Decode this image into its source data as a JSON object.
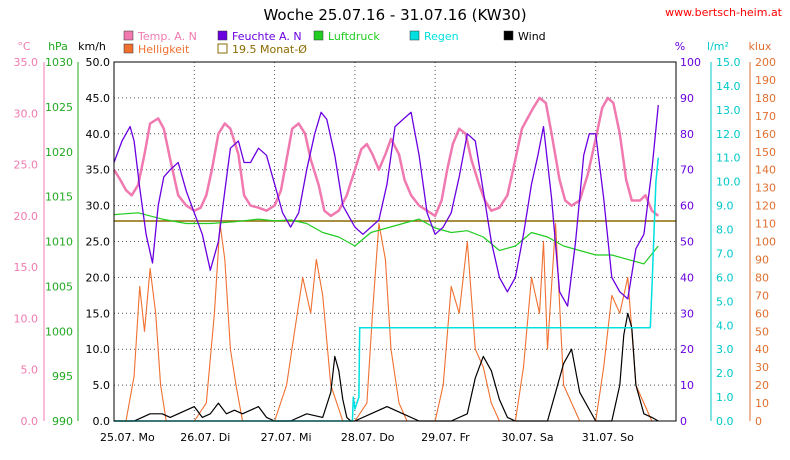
{
  "chart_data": {
    "type": "line",
    "title": "Woche 25.07.16 - 31.07.16 (KW30)",
    "source": "www.bertsch-heim.at",
    "legend": [
      {
        "label": "Temp. A. N",
        "color": "#f07ab0",
        "marker": "filled"
      },
      {
        "label": "Feuchte A. N",
        "color": "#6a00e0",
        "marker": "filled"
      },
      {
        "label": "Luftdruck",
        "color": "#22cc22",
        "marker": "filled"
      },
      {
        "label": "Regen",
        "color": "#00e0e0",
        "marker": "filled"
      },
      {
        "label": "Wind",
        "color": "#000000",
        "marker": "filled"
      },
      {
        "label": "Helligkeit",
        "color": "#f07030",
        "marker": "filled"
      },
      {
        "label": "19.5 Monat-Ø",
        "color": "#8b6b00",
        "marker": "hollow"
      }
    ],
    "x_ticks": [
      "25.07. Mo",
      "26.07. Di",
      "27.07. Mi",
      "28.07. Do",
      "29.07. Fr",
      "30.07. Sa",
      "31.07. So"
    ],
    "axes": {
      "temp": {
        "unit": "°C",
        "color": "#f07ab0",
        "ticks": [
          "0.0",
          "5.0",
          "10.0",
          "15.0",
          "20.0",
          "25.0",
          "30.0",
          "35.0"
        ],
        "range": [
          0,
          35
        ]
      },
      "pressure": {
        "unit": "hPa",
        "color": "#22aa22",
        "ticks": [
          "990",
          "995",
          "1000",
          "1005",
          "1010",
          "1015",
          "1020",
          "1025",
          "1030"
        ],
        "range": [
          990,
          1030
        ]
      },
      "wind": {
        "unit": "km/h",
        "color": "#000000",
        "ticks": [
          "0.0",
          "5.0",
          "10.0",
          "15.0",
          "20.0",
          "25.0",
          "30.0",
          "35.0",
          "40.0",
          "45.0",
          "50.0"
        ],
        "range": [
          0,
          50
        ]
      },
      "humidity": {
        "unit": "%",
        "color": "#6a00e0",
        "ticks": [
          "0",
          "10",
          "20",
          "30",
          "40",
          "50",
          "60",
          "70",
          "80",
          "90",
          "100"
        ],
        "range": [
          0,
          100
        ]
      },
      "rain": {
        "unit": "l/m²",
        "color": "#00c8c8",
        "ticks": [
          "0.0",
          "1.0",
          "2.0",
          "3.0",
          "4.0",
          "5.0",
          "6.0",
          "7.0",
          "8.0",
          "9.0",
          "10.0",
          "11.0",
          "12.0",
          "13.0",
          "14.0",
          "15.0"
        ],
        "range": [
          0,
          15
        ]
      },
      "lux": {
        "unit": "klux",
        "color": "#e07030",
        "ticks": [
          "0",
          "10",
          "20",
          "30",
          "40",
          "50",
          "60",
          "70",
          "80",
          "90",
          "100",
          "110",
          "120",
          "130",
          "140",
          "150",
          "160",
          "170",
          "180",
          "190",
          "200"
        ],
        "range": [
          0,
          200
        ]
      }
    },
    "monthly_avg_temp": 19.5,
    "grid": "dotted",
    "series": [
      {
        "name": "Temp. A. N",
        "axis": "temp",
        "color": "#f07ab0",
        "x": [
          0,
          0.08,
          0.15,
          0.22,
          0.3,
          0.38,
          0.45,
          0.55,
          0.62,
          0.7,
          0.8,
          0.9,
          1.0,
          1.08,
          1.15,
          1.22,
          1.3,
          1.38,
          1.45,
          1.55,
          1.62,
          1.7,
          1.8,
          1.9,
          2.0,
          2.08,
          2.15,
          2.22,
          2.3,
          2.38,
          2.45,
          2.55,
          2.62,
          2.7,
          2.8,
          2.9,
          3.0,
          3.08,
          3.15,
          3.22,
          3.3,
          3.38,
          3.45,
          3.55,
          3.62,
          3.7,
          3.8,
          3.9,
          4.0,
          4.08,
          4.15,
          4.22,
          4.3,
          4.38,
          4.45,
          4.55,
          4.62,
          4.7,
          4.8,
          4.9,
          5.0,
          5.08,
          5.15,
          5.22,
          5.3,
          5.38,
          5.45,
          5.55,
          5.62,
          5.7,
          5.8,
          5.9,
          6.0,
          6.08,
          6.15,
          6.22,
          6.3,
          6.38,
          6.45,
          6.55,
          6.62,
          6.7,
          6.78
        ],
        "y": [
          24.5,
          23.5,
          22.5,
          22,
          23,
          26,
          29,
          29.5,
          28.5,
          25.5,
          22,
          21,
          20.5,
          20.8,
          22,
          24.5,
          28,
          29,
          28.5,
          26,
          22,
          21,
          20.8,
          20.5,
          21,
          22.5,
          25.5,
          28.5,
          29,
          28,
          25.5,
          23,
          20.5,
          20,
          20.5,
          22,
          24.5,
          26.5,
          27,
          26,
          24.5,
          26,
          27.5,
          26,
          23.5,
          22,
          21,
          20.5,
          20,
          21.5,
          24.5,
          27,
          28.5,
          28,
          25.5,
          23,
          21.5,
          20.5,
          20.8,
          22,
          25.5,
          28.5,
          29.5,
          30.5,
          31.5,
          31,
          28,
          23.5,
          21.5,
          21,
          21.5,
          24,
          27.5,
          30.5,
          31.5,
          31,
          28,
          23.5,
          21.5,
          21.5,
          22,
          20.5,
          20
        ]
      },
      {
        "name": "Feuchte A. N",
        "axis": "humidity",
        "color": "#6a00e0",
        "x": [
          0,
          0.1,
          0.2,
          0.25,
          0.32,
          0.4,
          0.48,
          0.55,
          0.62,
          0.7,
          0.8,
          0.9,
          1.0,
          1.1,
          1.2,
          1.3,
          1.38,
          1.45,
          1.55,
          1.62,
          1.7,
          1.8,
          1.9,
          2.0,
          2.1,
          2.2,
          2.3,
          2.4,
          2.5,
          2.58,
          2.65,
          2.75,
          2.85,
          3.0,
          3.1,
          3.2,
          3.3,
          3.4,
          3.5,
          3.6,
          3.7,
          3.8,
          3.9,
          4.0,
          4.1,
          4.2,
          4.3,
          4.4,
          4.5,
          4.6,
          4.7,
          4.8,
          4.9,
          5.0,
          5.1,
          5.2,
          5.28,
          5.35,
          5.45,
          5.55,
          5.65,
          5.75,
          5.85,
          5.92,
          6.0,
          6.1,
          6.2,
          6.3,
          6.4,
          6.5,
          6.6,
          6.7,
          6.78
        ],
        "y": [
          72,
          78,
          82,
          78,
          65,
          52,
          44,
          60,
          68,
          70,
          72,
          64,
          58,
          52,
          42,
          50,
          64,
          76,
          78,
          72,
          72,
          76,
          74,
          66,
          58,
          54,
          58,
          70,
          80,
          86,
          84,
          74,
          60,
          54,
          52,
          54,
          56,
          66,
          82,
          84,
          86,
          74,
          58,
          52,
          54,
          58,
          68,
          80,
          78,
          64,
          50,
          40,
          36,
          40,
          52,
          66,
          74,
          82,
          62,
          36,
          32,
          50,
          74,
          80,
          80,
          62,
          40,
          36,
          34,
          48,
          52,
          70,
          88
        ]
      },
      {
        "name": "Luftdruck",
        "axis": "pressure",
        "color": "#22cc22",
        "x": [
          0,
          0.3,
          0.6,
          0.9,
          1.2,
          1.5,
          1.8,
          2.0,
          2.2,
          2.4,
          2.6,
          2.8,
          3.0,
          3.2,
          3.4,
          3.6,
          3.8,
          4.0,
          4.2,
          4.4,
          4.6,
          4.8,
          5.0,
          5.2,
          5.4,
          5.6,
          5.8,
          6.0,
          6.2,
          6.4,
          6.6,
          6.78
        ],
        "y": [
          1013,
          1013.2,
          1012.5,
          1012,
          1012,
          1012.2,
          1012.5,
          1012.3,
          1012.4,
          1012,
          1011,
          1010.5,
          1009.5,
          1011,
          1011.5,
          1012,
          1012.5,
          1011.5,
          1011,
          1011.2,
          1010.5,
          1009,
          1009.5,
          1011,
          1010.5,
          1009.5,
          1009,
          1008.5,
          1008.5,
          1008,
          1007.5,
          1009.5
        ]
      },
      {
        "name": "Regen",
        "axis": "rain",
        "color": "#00e0e0",
        "x": [
          0,
          2.97,
          2.98,
          3.0,
          3.05,
          3.06,
          3.1,
          3.11,
          6.0,
          6.68,
          6.7,
          6.75,
          6.78
        ],
        "y": [
          0,
          0,
          1,
          0.5,
          1,
          3.9,
          3.9,
          3.9,
          3.9,
          3.9,
          5.5,
          10,
          11
        ]
      },
      {
        "name": "Wind",
        "axis": "wind",
        "color": "#000000",
        "x": [
          0,
          0.25,
          0.35,
          0.45,
          0.55,
          0.6,
          0.7,
          0.8,
          0.9,
          1.0,
          1.1,
          1.2,
          1.3,
          1.4,
          1.5,
          1.6,
          1.7,
          1.8,
          1.9,
          2.0,
          2.2,
          2.4,
          2.6,
          2.7,
          2.75,
          2.8,
          2.85,
          2.9,
          2.95,
          3.0,
          3.2,
          3.4,
          3.6,
          3.8,
          4.0,
          4.2,
          4.4,
          4.5,
          4.6,
          4.7,
          4.8,
          4.9,
          5.0,
          5.2,
          5.4,
          5.5,
          5.6,
          5.7,
          5.8,
          6.0,
          6.1,
          6.2,
          6.3,
          6.35,
          6.4,
          6.45,
          6.5,
          6.6,
          6.7,
          6.78
        ],
        "y": [
          0,
          0,
          0.5,
          1,
          1,
          1,
          0.5,
          1,
          1.5,
          2,
          0.5,
          1,
          2.5,
          1,
          1.5,
          1,
          1.5,
          2,
          0.5,
          0,
          0,
          1,
          0.5,
          4,
          9,
          7,
          3,
          0.5,
          0,
          0,
          1,
          2,
          1,
          0,
          0,
          0,
          1,
          6,
          9,
          7,
          3,
          0.5,
          0,
          0,
          0,
          4,
          8,
          10,
          4,
          0,
          0,
          0,
          5,
          12,
          15,
          13,
          5,
          1,
          0.5,
          0
        ]
      },
      {
        "name": "Helligkeit",
        "axis": "lux",
        "color": "#f07030",
        "x": [
          0,
          0.15,
          0.25,
          0.32,
          0.38,
          0.45,
          0.52,
          0.58,
          0.65,
          0.72,
          0.85,
          1.0,
          1.15,
          1.25,
          1.32,
          1.38,
          1.45,
          1.52,
          1.6,
          1.7,
          1.85,
          2.0,
          2.15,
          2.25,
          2.35,
          2.45,
          2.52,
          2.6,
          2.7,
          2.85,
          3.0,
          3.15,
          3.22,
          3.3,
          3.38,
          3.45,
          3.55,
          3.65,
          3.8,
          4.0,
          4.1,
          4.2,
          4.3,
          4.4,
          4.5,
          4.6,
          4.7,
          4.8,
          5.0,
          5.1,
          5.2,
          5.3,
          5.35,
          5.4,
          5.5,
          5.6,
          5.8,
          6.0,
          6.1,
          6.2,
          6.3,
          6.4,
          6.5,
          6.6,
          6.7,
          6.78
        ],
        "y": [
          0,
          0,
          25,
          75,
          50,
          85,
          60,
          20,
          0,
          0,
          0,
          0,
          10,
          60,
          110,
          90,
          40,
          20,
          0,
          0,
          0,
          0,
          20,
          50,
          80,
          60,
          90,
          70,
          20,
          0,
          0,
          10,
          60,
          110,
          90,
          40,
          10,
          0,
          0,
          0,
          20,
          75,
          60,
          100,
          40,
          30,
          10,
          0,
          0,
          30,
          80,
          60,
          100,
          40,
          110,
          20,
          0,
          0,
          30,
          70,
          60,
          80,
          20,
          10,
          0,
          0
        ]
      }
    ]
  }
}
